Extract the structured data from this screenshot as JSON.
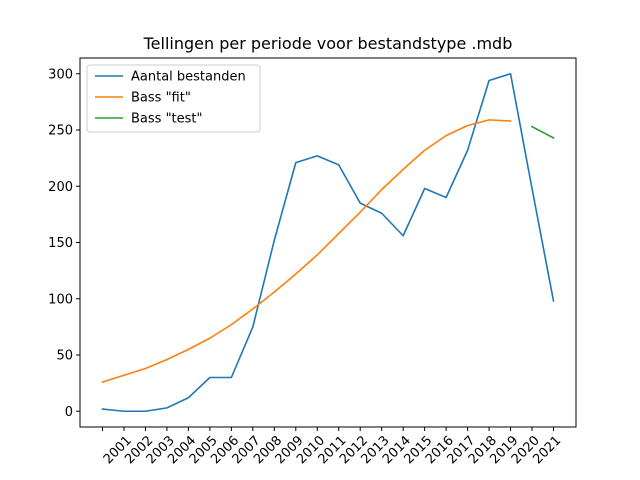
{
  "chart_data": {
    "type": "line",
    "title": "Tellingen per periode voor bestandstype .mdb",
    "xlabel": "",
    "ylabel": "",
    "categories": [
      "2001",
      "2002",
      "2003",
      "2004",
      "2005",
      "2006",
      "2007",
      "2008",
      "2009",
      "2010",
      "2011",
      "2012",
      "2013",
      "2014",
      "2015",
      "2016",
      "2017",
      "2018",
      "2019",
      "2020",
      "2021"
    ],
    "x_start": 2000,
    "ylim": [
      -14,
      314
    ],
    "yticks": [
      0,
      50,
      100,
      150,
      200,
      250,
      300
    ],
    "grid": false,
    "legend_position": "top-left",
    "series": [
      {
        "name": "Aantal bestanden",
        "color": "#1f77b4",
        "x": [
          2000,
          2001,
          2002,
          2003,
          2004,
          2005,
          2006,
          2007,
          2008,
          2009,
          2010,
          2011,
          2012,
          2013,
          2014,
          2015,
          2016,
          2017,
          2018,
          2019,
          2020,
          2021
        ],
        "values": [
          2,
          0,
          0,
          3,
          12,
          30,
          30,
          75,
          152,
          221,
          227,
          219,
          185,
          176,
          156,
          198,
          190,
          232,
          294,
          300,
          198,
          98
        ]
      },
      {
        "name": "Bass \"fit\"",
        "color": "#ff7f0e",
        "x": [
          2000,
          2001,
          2002,
          2003,
          2004,
          2005,
          2006,
          2007,
          2008,
          2009,
          2010,
          2011,
          2012,
          2013,
          2014,
          2015,
          2016,
          2017,
          2018,
          2019
        ],
        "values": [
          26,
          32,
          38,
          46,
          55,
          65,
          77,
          91,
          106,
          122,
          139,
          158,
          177,
          197,
          215,
          232,
          245,
          254,
          259,
          258
        ]
      },
      {
        "name": "Bass \"test\"",
        "color": "#2ca02c",
        "x": [
          2020,
          2021
        ],
        "values": [
          253,
          243
        ]
      }
    ]
  }
}
